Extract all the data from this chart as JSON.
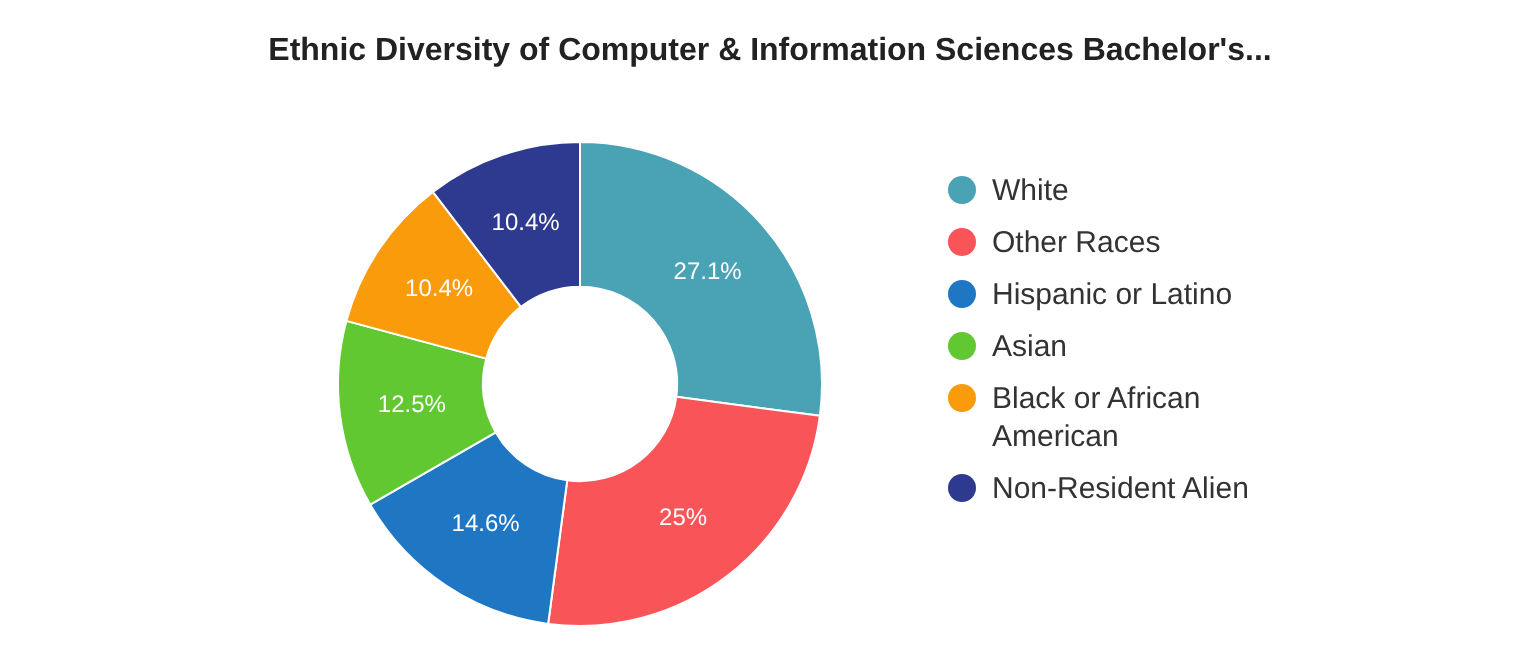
{
  "chart_data": {
    "type": "donut",
    "title": "Ethnic Diversity of Computer & Information Sciences Bachelor's...",
    "categories": [
      "White",
      "Other Races",
      "Hispanic or Latino",
      "Asian",
      "Black or African American",
      "Non-Resident Alien"
    ],
    "values": [
      27.1,
      25,
      14.6,
      12.5,
      10.4,
      10.4
    ],
    "colors": [
      "#4aa3b5",
      "#f95457",
      "#1f77c4",
      "#61c832",
      "#fa9b0c",
      "#2e3a8f"
    ],
    "value_labels": [
      "27.1%",
      "25%",
      "14.6%",
      "12.5%",
      "10.4%",
      "10.4%"
    ],
    "legend": "right"
  }
}
